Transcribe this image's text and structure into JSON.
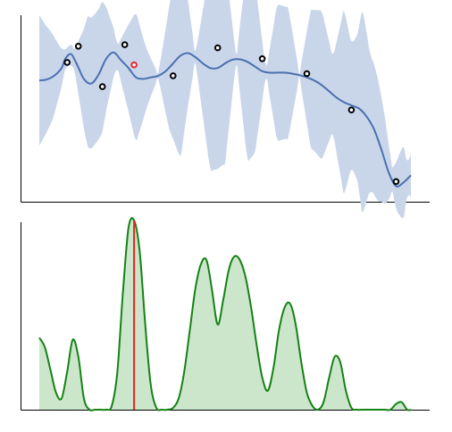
{
  "chart_data": [
    {
      "type": "line",
      "panel": "top",
      "title": "",
      "xlabel": "",
      "ylabel": "",
      "xlim": [
        0,
        10
      ],
      "ylim": [
        -3,
        3
      ],
      "grid": false,
      "legend": "none",
      "colors": {
        "mean": "#4a70b0",
        "band": "#c9d6ea",
        "observation": "#000000",
        "highlight": "#e8202a"
      },
      "mean": {
        "x": [
          0.0,
          0.2,
          0.4,
          0.6,
          0.7,
          0.85,
          1.0,
          1.2,
          1.4,
          1.6,
          1.8,
          2.0,
          2.2,
          2.4,
          2.6,
          2.8,
          3.0,
          3.2,
          3.4,
          3.6,
          3.8,
          4.0,
          4.2,
          4.4,
          4.6,
          4.8,
          5.0,
          5.2,
          5.4,
          5.6,
          5.8,
          6.0,
          6.2,
          6.4,
          6.6,
          6.8,
          7.0,
          7.2,
          7.4,
          7.6,
          7.8,
          8.0,
          8.2,
          8.4,
          8.6,
          8.8,
          9.0,
          9.2,
          9.4,
          9.6,
          9.8,
          10.0
        ],
        "y": [
          0.9,
          0.93,
          1.05,
          1.3,
          1.6,
          1.75,
          1.45,
          0.95,
          0.8,
          1.1,
          1.6,
          1.8,
          1.55,
          1.3,
          1.0,
          0.95,
          1.0,
          1.05,
          1.2,
          1.45,
          1.7,
          1.78,
          1.65,
          1.45,
          1.3,
          1.3,
          1.45,
          1.57,
          1.58,
          1.5,
          1.35,
          1.2,
          1.15,
          1.15,
          1.15,
          1.12,
          1.07,
          1.0,
          0.9,
          0.75,
          0.55,
          0.35,
          0.2,
          0.1,
          0.0,
          -0.25,
          -0.65,
          -1.3,
          -2.05,
          -2.5,
          -2.38,
          -2.15
        ]
      },
      "band_width": {
        "x": [
          0.0,
          0.35,
          0.7,
          0.95,
          1.3,
          1.7,
          2.1,
          2.6,
          2.9,
          3.2,
          3.5,
          3.8,
          4.2,
          4.6,
          5.0,
          5.3,
          5.6,
          5.8,
          6.1,
          6.4,
          6.7,
          7.0,
          7.3,
          7.6,
          7.9,
          8.2,
          8.4,
          8.55,
          8.7,
          8.9,
          9.1,
          9.3,
          9.5,
          9.65,
          9.8,
          9.9,
          10.0
        ],
        "y": [
          2.1,
          1.4,
          0.3,
          0.35,
          2.1,
          2.1,
          0.35,
          2.1,
          0.9,
          0.05,
          2.0,
          3.3,
          0.1,
          3.3,
          3.2,
          0.05,
          3.2,
          2.8,
          0.05,
          2.2,
          2.1,
          0.05,
          2.2,
          2.4,
          1.2,
          3.0,
          2.0,
          2.3,
          3.3,
          2.2,
          2.0,
          1.4,
          0.4,
          0.9,
          1.2,
          0.5,
          0.7
        ]
      },
      "observations": [
        {
          "x": 0.75,
          "y": 1.48
        },
        {
          "x": 1.05,
          "y": 2.0
        },
        {
          "x": 1.7,
          "y": 0.7
        },
        {
          "x": 2.3,
          "y": 2.05
        },
        {
          "x": 3.6,
          "y": 1.05
        },
        {
          "x": 4.8,
          "y": 1.95
        },
        {
          "x": 6.0,
          "y": 1.6
        },
        {
          "x": 7.2,
          "y": 1.12
        },
        {
          "x": 8.4,
          "y": -0.05
        },
        {
          "x": 9.6,
          "y": -2.35
        }
      ],
      "highlighted_observation": {
        "x": 2.55,
        "y": 1.4
      }
    },
    {
      "type": "area",
      "panel": "bottom",
      "title": "",
      "xlabel": "",
      "ylabel": "",
      "xlim": [
        0,
        10
      ],
      "ylim": [
        0,
        1
      ],
      "grid": false,
      "legend": "none",
      "colors": {
        "line": "#148214",
        "fill": "#cce6cc",
        "marker": "#e82020"
      },
      "x": [
        0.0,
        0.15,
        0.3,
        0.45,
        0.6,
        0.75,
        0.9,
        1.05,
        1.2,
        1.35,
        1.5,
        1.65,
        1.8,
        1.95,
        2.1,
        2.25,
        2.4,
        2.55,
        2.7,
        2.85,
        3.0,
        3.15,
        3.3,
        3.45,
        3.6,
        3.75,
        3.9,
        4.05,
        4.2,
        4.35,
        4.5,
        4.65,
        4.8,
        4.95,
        5.1,
        5.25,
        5.4,
        5.55,
        5.7,
        5.85,
        6.0,
        6.15,
        6.3,
        6.45,
        6.6,
        6.75,
        6.9,
        7.05,
        7.2,
        7.35,
        7.5,
        7.65,
        7.8,
        7.95,
        8.1,
        8.25,
        8.4,
        8.55,
        8.7,
        8.85,
        9.0,
        9.15,
        9.3,
        9.45,
        9.6,
        9.75,
        9.9,
        10.0
      ],
      "y": [
        0.38,
        0.33,
        0.21,
        0.09,
        0.06,
        0.2,
        0.37,
        0.28,
        0.06,
        0.0,
        0.0,
        0.0,
        0.0,
        0.02,
        0.2,
        0.62,
        0.96,
        1.0,
        0.84,
        0.45,
        0.13,
        0.01,
        0.0,
        0.0,
        0.01,
        0.06,
        0.2,
        0.42,
        0.64,
        0.77,
        0.79,
        0.63,
        0.45,
        0.58,
        0.74,
        0.81,
        0.79,
        0.7,
        0.54,
        0.34,
        0.17,
        0.1,
        0.22,
        0.42,
        0.54,
        0.56,
        0.45,
        0.25,
        0.09,
        0.02,
        0.0,
        0.04,
        0.17,
        0.28,
        0.25,
        0.1,
        0.01,
        0.0,
        0.0,
        0.0,
        0.0,
        0.0,
        0.0,
        0.0,
        0.03,
        0.04,
        0.0,
        0.0
      ],
      "marker_x": 2.55
    }
  ]
}
